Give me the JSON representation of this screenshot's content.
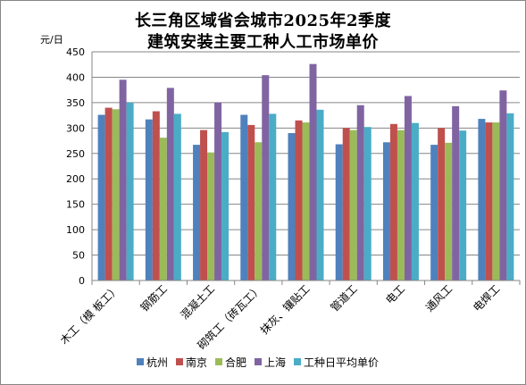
{
  "chart_data": {
    "type": "bar",
    "title_line1": "长三角区域省会城市2025年2季度",
    "title_line2": "建筑安装主要工种人工市场单价",
    "y_unit": "元/日",
    "ylim": [
      0,
      450
    ],
    "ytick_step": 50,
    "grid": true,
    "legend_position": "bottom",
    "categories": [
      "木工（模 板工）",
      "钢筋工",
      "混凝土工",
      "砌筑工（砖瓦工）",
      "抹灰、镶贴工",
      "管道工",
      "电工",
      "通风工",
      "电焊工"
    ],
    "series": [
      {
        "name": "杭州",
        "color": "#4F81BD",
        "values": [
          326,
          317,
          267,
          326,
          290,
          268,
          272,
          267,
          318
        ]
      },
      {
        "name": "南京",
        "color": "#C0504D",
        "values": [
          340,
          333,
          296,
          306,
          315,
          300,
          308,
          300,
          311
        ]
      },
      {
        "name": "合肥",
        "color": "#9BBB59",
        "values": [
          337,
          281,
          252,
          272,
          311,
          296,
          296,
          271,
          311
        ]
      },
      {
        "name": "上海",
        "color": "#8064A2",
        "values": [
          395,
          379,
          350,
          404,
          426,
          345,
          363,
          343,
          374
        ]
      },
      {
        "name": "工种日平均单价",
        "color": "#4BACC6",
        "values": [
          350,
          328,
          292,
          328,
          336,
          302,
          310,
          295,
          329
        ]
      }
    ]
  }
}
